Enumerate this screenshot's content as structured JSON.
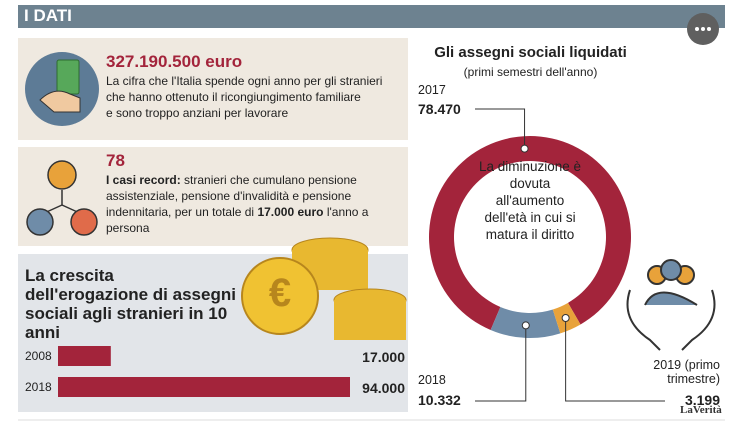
{
  "header": {
    "title": "I DATI"
  },
  "facts": [
    {
      "amount": "327.190.500 euro",
      "lines": [
        "La cifra che l'Italia spende ogni anno per gli stranieri",
        "che hanno ottenuto il ricongiungimento familiare",
        "e sono troppo anziani per lavorare"
      ]
    },
    {
      "amount": "78",
      "lead": "I casi record:",
      "text1": " stranieri che cumulano pensione assistenziale, pensione d'invalidità e pensione indennitaria, per un totale di ",
      "bold": "17.000 euro",
      "text2": " l'anno a persona"
    }
  ],
  "chart_data": [
    {
      "type": "bar",
      "title": "La crescita dell'erogazione di assegni sociali agli stranieri in 10 anni",
      "categories": [
        "2008",
        "2018"
      ],
      "values": [
        17000,
        94000
      ],
      "value_labels": [
        "17.000",
        "94.000"
      ],
      "color": "#a3243b"
    },
    {
      "type": "pie",
      "title": "Gli assegni sociali liquidati",
      "subtitle": "(primi semestri dell'anno)",
      "categories": [
        "2017",
        "2018",
        "2019 (primo trimestre)"
      ],
      "values": [
        78470,
        10332,
        3199
      ],
      "value_labels": [
        "78.470",
        "10.332",
        "3.199"
      ],
      "colors": [
        "#a3243b",
        "#6f8ca8",
        "#e8a23a"
      ],
      "annotation": "La diminuzione è dovuta all'aumento dell'età in cui si matura il diritto"
    }
  ],
  "footer": {
    "logo": "LaVerità"
  }
}
